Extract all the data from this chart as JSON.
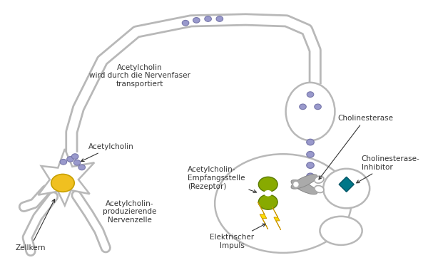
{
  "bg_color": "#ffffff",
  "nc": "#b8b8b8",
  "lw": 1.8,
  "nucleus_color": "#f0c020",
  "vesicle_fill": "#9999cc",
  "vesicle_edge": "#7777aa",
  "receptor_color": "#88aa00",
  "inhibitor_color": "#007788",
  "lightning_color": "#ffdd00",
  "sc_color": "#aaaaaa",
  "text_color": "#333333",
  "labels": {
    "zellkern": "Zellkern",
    "producer": "Acetylcholin-\nproduzierende\nNervenzelle",
    "acetylcholin": "Acetylcholin",
    "transport": "Acetylcholin\nwird durch die Nervenfaser\ntransportiert",
    "rezeptor": "Acetylcholin-\nEmpfangsstelle\n(Rezeptor)",
    "cholinesterase": "Cholinesterase",
    "inhibitor": "Cholinesterase-\nInhibitor",
    "impuls": "Elektrischer\nImpuls"
  }
}
